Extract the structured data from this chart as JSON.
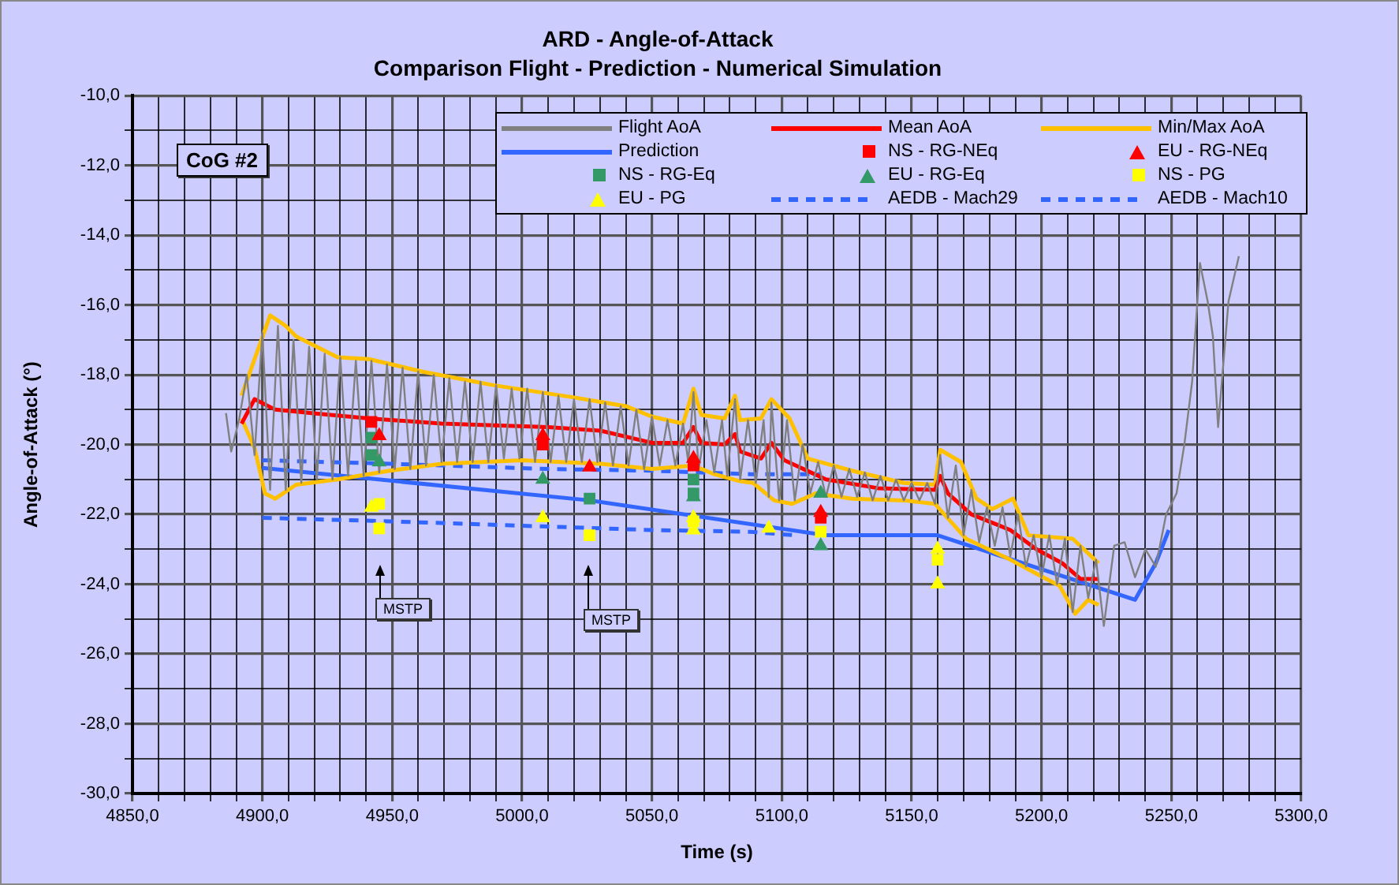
{
  "chart_data": {
    "type": "line",
    "title": "ARD - Angle-of-Attack",
    "subtitle": "Comparison Flight - Prediction - Numerical Simulation",
    "xlabel": "Time (s)",
    "ylabel": "Angle-of-Attack (°)",
    "xlim": [
      4850,
      5300
    ],
    "ylim": [
      -30,
      -10
    ],
    "xticks": [
      {
        "value": 4850,
        "label": "4850,0"
      },
      {
        "value": 4860,
        "label": null
      },
      {
        "value": 4870,
        "label": null
      },
      {
        "value": 4880,
        "label": null
      },
      {
        "value": 4890,
        "label": null
      },
      {
        "value": 4900,
        "label": "4900,0"
      },
      {
        "value": 4910,
        "label": null
      },
      {
        "value": 4920,
        "label": null
      },
      {
        "value": 4930,
        "label": null
      },
      {
        "value": 4940,
        "label": null
      },
      {
        "value": 4950,
        "label": "4950,0"
      },
      {
        "value": 4960,
        "label": null
      },
      {
        "value": 4970,
        "label": null
      },
      {
        "value": 4980,
        "label": null
      },
      {
        "value": 4990,
        "label": null
      },
      {
        "value": 5000,
        "label": "5000,0"
      },
      {
        "value": 5010,
        "label": null
      },
      {
        "value": 5020,
        "label": null
      },
      {
        "value": 5030,
        "label": null
      },
      {
        "value": 5040,
        "label": null
      },
      {
        "value": 5050,
        "label": "5050,0"
      },
      {
        "value": 5060,
        "label": null
      },
      {
        "value": 5070,
        "label": null
      },
      {
        "value": 5080,
        "label": null
      },
      {
        "value": 5090,
        "label": null
      },
      {
        "value": 5100,
        "label": "5100,0"
      },
      {
        "value": 5110,
        "label": null
      },
      {
        "value": 5120,
        "label": null
      },
      {
        "value": 5130,
        "label": null
      },
      {
        "value": 5140,
        "label": null
      },
      {
        "value": 5150,
        "label": "5150,0"
      },
      {
        "value": 5160,
        "label": null
      },
      {
        "value": 5170,
        "label": null
      },
      {
        "value": 5180,
        "label": null
      },
      {
        "value": 5190,
        "label": null
      },
      {
        "value": 5200,
        "label": "5200,0"
      },
      {
        "value": 5210,
        "label": null
      },
      {
        "value": 5220,
        "label": null
      },
      {
        "value": 5230,
        "label": null
      },
      {
        "value": 5240,
        "label": null
      },
      {
        "value": 5250,
        "label": "5250,0"
      },
      {
        "value": 5260,
        "label": null
      },
      {
        "value": 5270,
        "label": null
      },
      {
        "value": 5280,
        "label": null
      },
      {
        "value": 5290,
        "label": null
      },
      {
        "value": 5300,
        "label": "5300,0"
      }
    ],
    "yticks": [
      {
        "value": -30,
        "label": "-30,0"
      },
      {
        "value": -29,
        "label": null
      },
      {
        "value": -28,
        "label": "-28,0"
      },
      {
        "value": -27,
        "label": null
      },
      {
        "value": -26,
        "label": "-26,0"
      },
      {
        "value": -25,
        "label": null
      },
      {
        "value": -24,
        "label": "-24,0"
      },
      {
        "value": -23,
        "label": null
      },
      {
        "value": -22,
        "label": "-22,0"
      },
      {
        "value": -21,
        "label": null
      },
      {
        "value": -20,
        "label": "-20,0"
      },
      {
        "value": -19,
        "label": null
      },
      {
        "value": -18,
        "label": "-18,0"
      },
      {
        "value": -17,
        "label": null
      },
      {
        "value": -16,
        "label": "-16,0"
      },
      {
        "value": -15,
        "label": null
      },
      {
        "value": -14,
        "label": "-14,0"
      },
      {
        "value": -13,
        "label": null
      },
      {
        "value": -12,
        "label": "-12,0"
      },
      {
        "value": -11,
        "label": null
      },
      {
        "value": -10,
        "label": "-10,0"
      }
    ],
    "grid": true,
    "legend": "top right",
    "annotations": [
      "CoG #2",
      "MSTP",
      "MSTP"
    ],
    "series": [
      {
        "name": "Flight AoA",
        "color": "#808080",
        "x": [
          4886,
          4888,
          4891,
          4894,
          4897,
          4900,
          4903,
          4906,
          4909,
          4912,
          4915,
          4918,
          4921,
          4924,
          4927,
          4930,
          4933,
          4936,
          4939,
          4942,
          4945,
          4948,
          4951,
          4954,
          4957,
          4960,
          4963,
          4966,
          4969,
          4972,
          4975,
          4978,
          4981,
          4984,
          4987,
          4990,
          4993,
          4996,
          4999,
          5002,
          5005,
          5008,
          5011,
          5014,
          5017,
          5020,
          5023,
          5026,
          5029,
          5032,
          5035,
          5038,
          5041,
          5044,
          5047,
          5050,
          5053,
          5056,
          5059,
          5062,
          5064,
          5066,
          5068,
          5071,
          5074,
          5077,
          5079,
          5082,
          5084,
          5087,
          5090,
          5093,
          5095,
          5096,
          5099,
          5102,
          5105,
          5108,
          5111,
          5114,
          5117,
          5120,
          5123,
          5126,
          5129,
          5132,
          5135,
          5138,
          5141,
          5144,
          5147,
          5150,
          5153,
          5156,
          5159,
          5161,
          5164,
          5167,
          5170,
          5173,
          5176,
          5179,
          5182,
          5185,
          5188,
          5191,
          5194,
          5197,
          5200,
          5203,
          5206,
          5209,
          5212,
          5215,
          5218,
          5221,
          5224,
          5228,
          5232,
          5236,
          5240,
          5244,
          5248,
          5252,
          5255,
          5258,
          5261,
          5264,
          5266,
          5268,
          5270,
          5272,
          5276
        ],
        "values": [
          -19.1,
          -20.2,
          -19.3,
          -18.0,
          -20.3,
          -16.8,
          -21.3,
          -16.6,
          -21.3,
          -17.0,
          -21.1,
          -17.2,
          -21.0,
          -17.4,
          -21.0,
          -17.5,
          -20.9,
          -17.6,
          -20.9,
          -17.6,
          -20.8,
          -17.7,
          -20.7,
          -17.8,
          -20.7,
          -17.9,
          -20.6,
          -18.0,
          -20.5,
          -18.1,
          -20.5,
          -18.2,
          -20.5,
          -18.2,
          -20.5,
          -18.3,
          -20.4,
          -18.4,
          -20.4,
          -18.4,
          -20.5,
          -18.5,
          -20.5,
          -18.6,
          -20.5,
          -18.7,
          -20.5,
          -18.7,
          -20.5,
          -18.8,
          -20.6,
          -18.9,
          -20.6,
          -19.0,
          -20.7,
          -19.2,
          -20.6,
          -19.3,
          -20.6,
          -19.4,
          -20.5,
          -18.5,
          -20.7,
          -19.3,
          -20.8,
          -19.3,
          -20.9,
          -18.7,
          -21.0,
          -19.3,
          -21.1,
          -19.3,
          -21.5,
          -18.8,
          -21.6,
          -19.3,
          -21.6,
          -20.0,
          -21.4,
          -20.5,
          -21.5,
          -20.6,
          -21.5,
          -20.7,
          -21.5,
          -20.8,
          -21.6,
          -20.9,
          -21.6,
          -21.0,
          -21.6,
          -21.1,
          -21.6,
          -21.1,
          -21.7,
          -20.3,
          -22.1,
          -20.6,
          -22.6,
          -21.3,
          -22.8,
          -21.8,
          -22.9,
          -21.8,
          -23.2,
          -22.0,
          -23.5,
          -22.6,
          -23.8,
          -22.6,
          -24.0,
          -22.7,
          -24.8,
          -22.9,
          -24.4,
          -23.3,
          -25.2,
          -22.9,
          -22.8,
          -23.8,
          -23.0,
          -23.5,
          -22.0,
          -21.4,
          -20.0,
          -18.2,
          -14.8,
          -15.9,
          -16.9,
          -19.5,
          -17.7,
          -15.9,
          -14.6
        ]
      },
      {
        "name": "Mean AoA",
        "color": "#ff0000",
        "x": [
          4892,
          4897,
          4905,
          4919,
          4941,
          4969,
          5010,
          5030,
          5050,
          5062,
          5066,
          5069,
          5078,
          5082,
          5084,
          5092,
          5096,
          5101,
          5117,
          5137,
          5159,
          5161,
          5164,
          5173,
          5188,
          5198,
          5208,
          5215,
          5222
        ],
        "values": [
          -19.4,
          -18.7,
          -19.0,
          -19.1,
          -19.25,
          -19.4,
          -19.5,
          -19.6,
          -19.95,
          -19.95,
          -19.5,
          -19.95,
          -20.0,
          -19.7,
          -20.2,
          -20.4,
          -19.95,
          -20.45,
          -21.0,
          -21.25,
          -21.3,
          -20.9,
          -21.4,
          -22.0,
          -22.45,
          -23.0,
          -23.4,
          -23.85,
          -23.85
        ]
      },
      {
        "name": "Min/Max AoA",
        "color": "#ffc000",
        "x": [
          4892,
          4903,
          4909,
          4913,
          4929,
          4941,
          4961,
          4989,
          5020,
          5040,
          5050,
          5062,
          5066,
          5069,
          5078,
          5082,
          5084,
          5092,
          5096,
          5103,
          5110,
          5127,
          5147,
          5159,
          5161,
          5169,
          5175,
          5181,
          5189,
          5195,
          5212,
          5222
        ],
        "values": [
          -18.6,
          -16.3,
          -16.6,
          -16.9,
          -17.5,
          -17.55,
          -17.9,
          -18.3,
          -18.65,
          -18.9,
          -19.2,
          -19.4,
          -18.4,
          -19.15,
          -19.25,
          -18.6,
          -19.3,
          -19.25,
          -18.7,
          -19.25,
          -20.4,
          -20.75,
          -21.1,
          -21.15,
          -20.15,
          -20.5,
          -21.55,
          -21.85,
          -21.55,
          -22.6,
          -22.7,
          -23.4
        ]
      },
      {
        "color": "#ffc000",
        "x": [
          4892,
          4897,
          4901,
          4905,
          4913,
          4929,
          4949,
          4969,
          5000,
          5030,
          5050,
          5066,
          5074,
          5084,
          5089,
          5097,
          5104,
          5113,
          5127,
          5147,
          5159,
          5171,
          5188,
          5198,
          5207,
          5213,
          5218,
          5222
        ],
        "values": [
          -19.25,
          -20.1,
          -21.4,
          -21.55,
          -21.15,
          -21.0,
          -20.75,
          -20.55,
          -20.45,
          -20.55,
          -20.7,
          -20.6,
          -20.85,
          -21.05,
          -21.1,
          -21.6,
          -21.7,
          -21.4,
          -21.55,
          -21.6,
          -21.7,
          -22.7,
          -23.3,
          -23.7,
          -24.05,
          -24.85,
          -24.45,
          -24.6
        ]
      },
      {
        "name": "Prediction",
        "color": "#3366ff",
        "x": [
          4900,
          5026,
          5117,
          5160,
          5236,
          5244,
          5249
        ],
        "values": [
          -20.67,
          -21.6,
          -22.6,
          -22.6,
          -24.45,
          -23.4,
          -22.45
        ]
      },
      {
        "name": "NS - RG-NEq",
        "type": "scatter",
        "marker": "square",
        "color": "#ff0000",
        "x": [
          4942,
          5008,
          5066,
          5115
        ],
        "values": [
          -19.35,
          -20.0,
          -20.6,
          -22.1
        ]
      },
      {
        "name": "EU - RG-NEq",
        "type": "scatter",
        "marker": "triangle",
        "color": "#ff0000",
        "x": [
          4945,
          5008,
          5026,
          5066,
          5115
        ],
        "values": [
          -19.75,
          -19.75,
          -20.65,
          -20.4,
          -21.95
        ]
      },
      {
        "name": "NS - RG-Eq",
        "type": "scatter",
        "marker": "square",
        "color": "#339966",
        "x": [
          4942,
          4942,
          5026,
          5066,
          5066
        ],
        "values": [
          -19.8,
          -20.3,
          -21.55,
          -21.0,
          -21.4
        ]
      },
      {
        "name": "EU - RG-Eq",
        "type": "scatter",
        "marker": "triangle",
        "color": "#339966",
        "x": [
          4945,
          5008,
          5066,
          5115,
          5115
        ],
        "values": [
          -20.5,
          -21.0,
          -21.5,
          -21.4,
          -22.9
        ]
      },
      {
        "name": "NS - PG",
        "type": "scatter",
        "marker": "square",
        "color": "#ffff00",
        "x": [
          4945,
          4945,
          5026,
          5066,
          5115,
          5160
        ],
        "values": [
          -21.7,
          -22.4,
          -22.6,
          -22.2,
          -22.5,
          -23.3
        ]
      },
      {
        "name": "EU - PG",
        "type": "scatter",
        "marker": "triangle",
        "color": "#ffff00",
        "x": [
          4942,
          5008,
          5066,
          5066,
          5095,
          5160,
          5160
        ],
        "values": [
          -21.8,
          -22.1,
          -22.1,
          -22.45,
          -22.4,
          -23.0,
          -24.0
        ]
      },
      {
        "name": "AEDB - Mach29",
        "line_style": "dashed",
        "color": "#3366ff",
        "x": [
          4900,
          4949,
          5010,
          5050,
          5088,
          5115
        ],
        "values": [
          -20.45,
          -20.55,
          -20.7,
          -20.75,
          -20.85,
          -20.85
        ]
      },
      {
        "name": "AEDB - Mach10",
        "line_style": "dashed",
        "color": "#3366ff",
        "x": [
          4900,
          4949,
          5010,
          5050,
          5088,
          5105
        ],
        "values": [
          -22.1,
          -22.2,
          -22.35,
          -22.45,
          -22.5,
          -22.6
        ]
      }
    ]
  }
}
